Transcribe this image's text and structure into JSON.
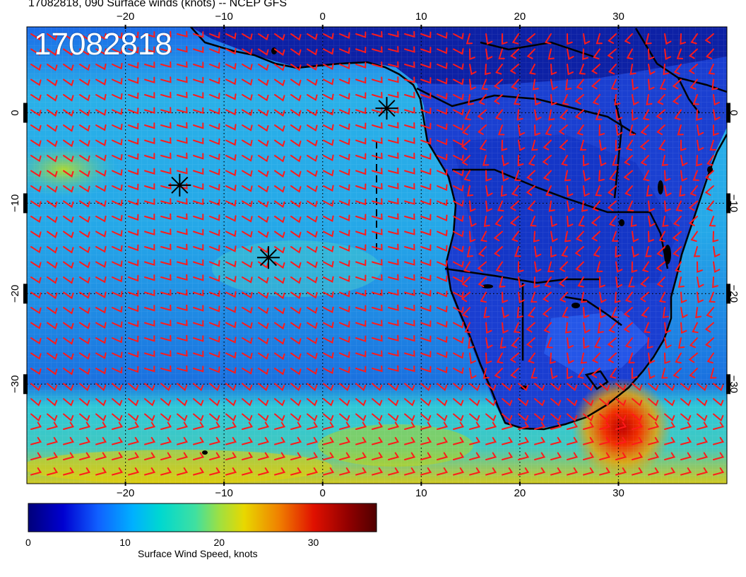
{
  "header": {
    "title": "17082818, 090 Surface winds (knots) -- NCEP GFS",
    "stamp": "17082818"
  },
  "map": {
    "lon_range": [
      -30,
      41
    ],
    "lat_range": [
      -41,
      9.5
    ],
    "lon_ticks": [
      -20,
      -10,
      0,
      10,
      20,
      30
    ],
    "lat_ticks": [
      0,
      -10,
      -20,
      -30
    ],
    "top_tick_labels": [
      "−20",
      "−10",
      "0",
      "10",
      "20",
      "30"
    ],
    "bottom_tick_labels": [
      "−20",
      "−10",
      "0",
      "10",
      "20",
      "30"
    ],
    "left_tick_labels": [
      "0",
      "−10",
      "−20",
      "−30"
    ],
    "right_tick_labels": [
      "0",
      "−10",
      "−20",
      "−30"
    ],
    "markers": [
      {
        "name": "storm-marker",
        "lon": -14.5,
        "lat": -8.0
      },
      {
        "name": "storm-marker",
        "lon": -5.5,
        "lat": -16.0
      },
      {
        "name": "storm-marker",
        "lon": 6.5,
        "lat": 0.5
      }
    ],
    "barb_color": "#ff1a1a",
    "coast_color": "#000000"
  },
  "colorbar": {
    "label": "Surface Wind Speed, knots",
    "range": [
      0,
      37
    ],
    "tick_values": [
      0,
      10,
      20,
      30
    ],
    "tick_labels": [
      "0",
      "10",
      "20",
      "30"
    ],
    "colors": [
      "#00007a",
      "#0000d0",
      "#1060ff",
      "#00b0ff",
      "#00d8d0",
      "#40e0a0",
      "#a0e040",
      "#e8d800",
      "#f08000",
      "#e01000",
      "#900000",
      "#500000"
    ]
  }
}
